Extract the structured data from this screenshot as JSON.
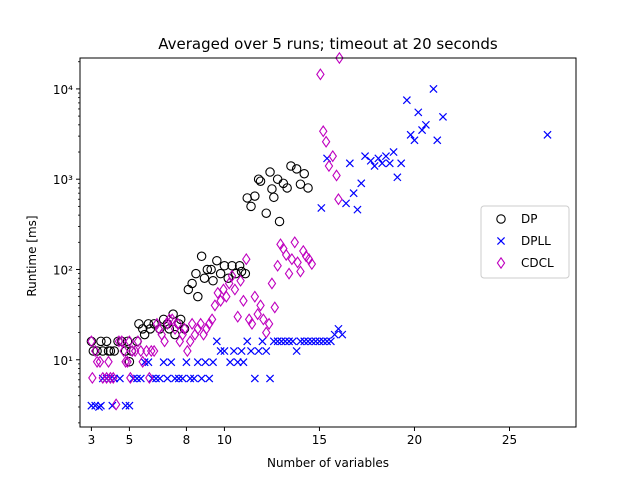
{
  "chart_data": {
    "type": "scatter",
    "title": "Averaged over 5 runs; timeout at 20 seconds",
    "xlabel": "Number of variables",
    "ylabel": "Runtime [ms]",
    "xlim": [
      2.4,
      28.5
    ],
    "ylim": [
      1.8,
      22000
    ],
    "y_scale": "log",
    "x_ticks": [
      3,
      5,
      8,
      10,
      15,
      20,
      25
    ],
    "y_ticks": [
      {
        "value": 10,
        "label": "10¹"
      },
      {
        "value": 100,
        "label": "10²"
      },
      {
        "value": 1000,
        "label": "10³"
      },
      {
        "value": 10000,
        "label": "10⁴"
      }
    ],
    "grid": false,
    "legend_position": "right",
    "series": [
      {
        "name": "DP",
        "marker": "circle",
        "color": "#000000",
        "points": [
          [
            3.0,
            16
          ],
          [
            3.1,
            12.5
          ],
          [
            3.3,
            12.5
          ],
          [
            3.5,
            16
          ],
          [
            3.6,
            12.5
          ],
          [
            3.8,
            16
          ],
          [
            3.9,
            12.5
          ],
          [
            4.0,
            12.5
          ],
          [
            4.2,
            12.5
          ],
          [
            4.4,
            16
          ],
          [
            4.6,
            16
          ],
          [
            4.8,
            12.5
          ],
          [
            4.9,
            16
          ],
          [
            5.0,
            9.5
          ],
          [
            5.1,
            12.5
          ],
          [
            5.4,
            16
          ],
          [
            5.5,
            25
          ],
          [
            5.7,
            22
          ],
          [
            5.8,
            19
          ],
          [
            6.0,
            25
          ],
          [
            6.1,
            22
          ],
          [
            6.3,
            25
          ],
          [
            6.6,
            22
          ],
          [
            6.8,
            28
          ],
          [
            7.0,
            25
          ],
          [
            7.1,
            22
          ],
          [
            7.3,
            32
          ],
          [
            7.4,
            19
          ],
          [
            7.6,
            25
          ],
          [
            7.7,
            28
          ],
          [
            7.9,
            22
          ],
          [
            8.1,
            60
          ],
          [
            8.3,
            70
          ],
          [
            8.5,
            90
          ],
          [
            8.6,
            50
          ],
          [
            8.8,
            140
          ],
          [
            8.95,
            80
          ],
          [
            9.1,
            100
          ],
          [
            9.3,
            100
          ],
          [
            9.4,
            75
          ],
          [
            9.6,
            125
          ],
          [
            9.8,
            90
          ],
          [
            10.0,
            110
          ],
          [
            10.2,
            80
          ],
          [
            10.4,
            110
          ],
          [
            10.6,
            90
          ],
          [
            10.8,
            110
          ],
          [
            10.9,
            95
          ],
          [
            11.1,
            90
          ],
          [
            11.2,
            620
          ],
          [
            11.4,
            500
          ],
          [
            11.6,
            650
          ],
          [
            11.8,
            1000
          ],
          [
            11.9,
            950
          ],
          [
            12.2,
            420
          ],
          [
            12.4,
            1200
          ],
          [
            12.5,
            780
          ],
          [
            12.6,
            630
          ],
          [
            12.8,
            1000
          ],
          [
            12.9,
            340
          ],
          [
            13.1,
            900
          ],
          [
            13.3,
            800
          ],
          [
            13.5,
            1400
          ],
          [
            13.8,
            1300
          ],
          [
            14.0,
            880
          ],
          [
            14.2,
            1150
          ],
          [
            14.4,
            800
          ]
        ]
      },
      {
        "name": "DPLL",
        "marker": "x",
        "color": "#0000ff",
        "points": [
          [
            3.0,
            3.1
          ],
          [
            3.2,
            3.1
          ],
          [
            3.4,
            3.0
          ],
          [
            3.5,
            3.1
          ],
          [
            3.6,
            6.2
          ],
          [
            3.8,
            6.2
          ],
          [
            4.0,
            6.2
          ],
          [
            4.1,
            3.1
          ],
          [
            4.2,
            6.2
          ],
          [
            4.5,
            6.2
          ],
          [
            4.8,
            3.1
          ],
          [
            5.0,
            3.1
          ],
          [
            5.2,
            6.2
          ],
          [
            5.4,
            6.2
          ],
          [
            5.6,
            6.2
          ],
          [
            5.8,
            9.4
          ],
          [
            6.0,
            9.4
          ],
          [
            6.2,
            6.2
          ],
          [
            6.4,
            6.2
          ],
          [
            6.6,
            6.2
          ],
          [
            6.8,
            9.4
          ],
          [
            7.0,
            6.2
          ],
          [
            7.2,
            9.4
          ],
          [
            7.4,
            6.2
          ],
          [
            7.6,
            6.2
          ],
          [
            7.8,
            6.2
          ],
          [
            8.0,
            9.4
          ],
          [
            8.2,
            6.2
          ],
          [
            8.4,
            6.2
          ],
          [
            8.6,
            9.4
          ],
          [
            8.8,
            6.2
          ],
          [
            9.0,
            9.4
          ],
          [
            9.2,
            6.2
          ],
          [
            9.4,
            9.4
          ],
          [
            9.6,
            16
          ],
          [
            9.8,
            12.5
          ],
          [
            10.0,
            12.5
          ],
          [
            10.3,
            9.4
          ],
          [
            10.5,
            12.5
          ],
          [
            10.7,
            9.4
          ],
          [
            10.9,
            12.5
          ],
          [
            11.0,
            9.4
          ],
          [
            11.2,
            16
          ],
          [
            11.4,
            12.5
          ],
          [
            11.6,
            6.2
          ],
          [
            11.8,
            12.5
          ],
          [
            12.0,
            16
          ],
          [
            12.2,
            12.5
          ],
          [
            12.4,
            6.2
          ],
          [
            12.6,
            16
          ],
          [
            12.8,
            16
          ],
          [
            13.0,
            16
          ],
          [
            13.2,
            16
          ],
          [
            13.4,
            16
          ],
          [
            13.6,
            16
          ],
          [
            13.8,
            12.5
          ],
          [
            14.0,
            16
          ],
          [
            14.2,
            16
          ],
          [
            14.4,
            16
          ],
          [
            14.6,
            16
          ],
          [
            14.8,
            16
          ],
          [
            15.0,
            16
          ],
          [
            15.2,
            16
          ],
          [
            15.4,
            16
          ],
          [
            15.6,
            16
          ],
          [
            15.8,
            19
          ],
          [
            16.0,
            22
          ],
          [
            16.2,
            19
          ],
          [
            15.1,
            480
          ],
          [
            15.4,
            1700
          ],
          [
            16.4,
            540
          ],
          [
            16.6,
            1500
          ],
          [
            16.8,
            700
          ],
          [
            17.0,
            460
          ],
          [
            17.2,
            900
          ],
          [
            17.4,
            1800
          ],
          [
            17.7,
            1600
          ],
          [
            17.9,
            1400
          ],
          [
            18.1,
            1700
          ],
          [
            18.3,
            1500
          ],
          [
            18.5,
            1800
          ],
          [
            18.7,
            1500
          ],
          [
            18.9,
            2000
          ],
          [
            19.1,
            1050
          ],
          [
            19.3,
            1500
          ],
          [
            19.6,
            7500
          ],
          [
            19.8,
            3100
          ],
          [
            20.0,
            2700
          ],
          [
            20.2,
            5500
          ],
          [
            20.4,
            3500
          ],
          [
            20.6,
            4000
          ],
          [
            21.0,
            10000
          ],
          [
            21.2,
            2700
          ],
          [
            21.5,
            4900
          ],
          [
            27.0,
            3100
          ]
        ]
      },
      {
        "name": "CDCL",
        "marker": "diamond",
        "color": "#bf00bf",
        "points": [
          [
            3.0,
            16
          ],
          [
            3.05,
            6.3
          ],
          [
            3.2,
            12.5
          ],
          [
            3.3,
            9.5
          ],
          [
            3.45,
            9.5
          ],
          [
            3.6,
            6.3
          ],
          [
            3.8,
            6.3
          ],
          [
            3.9,
            9.5
          ],
          [
            4.0,
            6.3
          ],
          [
            4.15,
            6.3
          ],
          [
            4.3,
            3.2
          ],
          [
            4.45,
            16
          ],
          [
            4.6,
            16
          ],
          [
            4.7,
            12.5
          ],
          [
            4.8,
            9.5
          ],
          [
            4.9,
            9.5
          ],
          [
            5.0,
            16
          ],
          [
            5.05,
            6.3
          ],
          [
            5.15,
            12.5
          ],
          [
            5.3,
            12.5
          ],
          [
            5.45,
            16
          ],
          [
            5.6,
            12.5
          ],
          [
            5.7,
            9.5
          ],
          [
            5.9,
            12.5
          ],
          [
            6.05,
            6.3
          ],
          [
            6.15,
            12.5
          ],
          [
            6.3,
            12.5
          ],
          [
            6.45,
            25
          ],
          [
            6.55,
            22
          ],
          [
            6.7,
            19
          ],
          [
            6.85,
            16
          ],
          [
            7.0,
            25
          ],
          [
            7.1,
            28
          ],
          [
            7.25,
            28
          ],
          [
            7.4,
            22
          ],
          [
            7.55,
            25
          ],
          [
            7.65,
            16
          ],
          [
            7.8,
            19
          ],
          [
            7.9,
            22
          ],
          [
            8.05,
            12.5
          ],
          [
            8.2,
            16
          ],
          [
            8.3,
            25
          ],
          [
            8.45,
            19
          ],
          [
            8.6,
            22
          ],
          [
            8.75,
            25
          ],
          [
            8.9,
            19
          ],
          [
            9.05,
            22
          ],
          [
            9.2,
            25
          ],
          [
            9.35,
            28
          ],
          [
            9.5,
            40
          ],
          [
            9.65,
            55
          ],
          [
            9.8,
            45
          ],
          [
            9.95,
            60
          ],
          [
            10.1,
            50
          ],
          [
            10.25,
            70
          ],
          [
            10.4,
            85
          ],
          [
            10.55,
            60
          ],
          [
            10.7,
            30
          ],
          [
            10.85,
            75
          ],
          [
            11.0,
            45
          ],
          [
            11.15,
            130
          ],
          [
            11.3,
            28
          ],
          [
            11.45,
            25
          ],
          [
            11.6,
            50
          ],
          [
            11.75,
            32
          ],
          [
            11.9,
            40
          ],
          [
            12.05,
            28
          ],
          [
            12.2,
            20
          ],
          [
            12.35,
            25
          ],
          [
            12.5,
            70
          ],
          [
            12.65,
            38
          ],
          [
            12.8,
            110
          ],
          [
            12.95,
            190
          ],
          [
            13.1,
            170
          ],
          [
            13.25,
            145
          ],
          [
            13.4,
            90
          ],
          [
            13.55,
            130
          ],
          [
            13.7,
            200
          ],
          [
            13.85,
            120
          ],
          [
            14.0,
            95
          ],
          [
            14.15,
            160
          ],
          [
            14.3,
            140
          ],
          [
            14.45,
            130
          ],
          [
            14.6,
            115
          ],
          [
            15.05,
            14500
          ],
          [
            15.2,
            3400
          ],
          [
            15.35,
            2600
          ],
          [
            15.5,
            1400
          ],
          [
            15.7,
            1800
          ],
          [
            15.9,
            1100
          ],
          [
            16.0,
            600
          ],
          [
            16.05,
            25000
          ]
        ]
      }
    ]
  }
}
